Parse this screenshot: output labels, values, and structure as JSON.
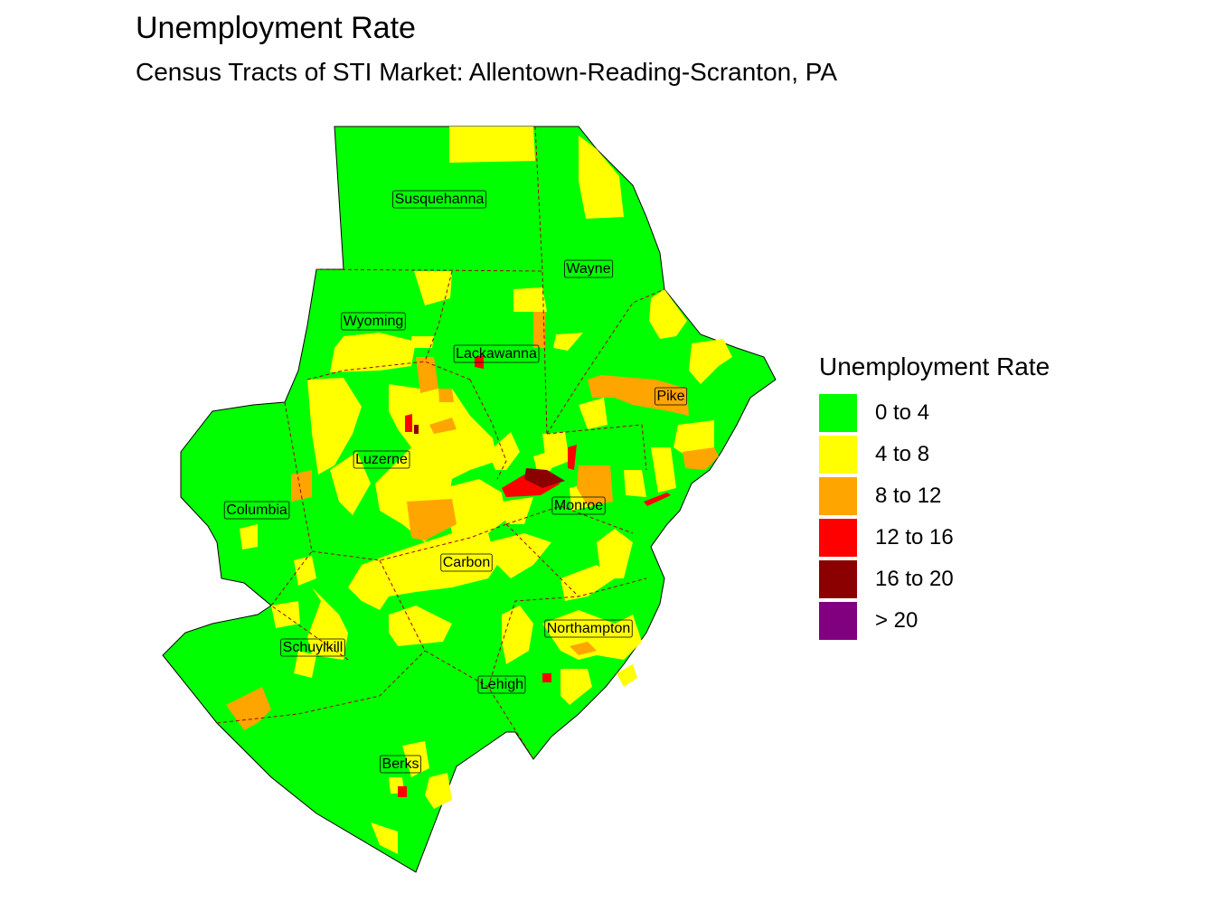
{
  "title": "Unemployment Rate",
  "subtitle": "Census Tracts of STI Market: Allentown-Reading-Scranton, PA",
  "legend": {
    "title": "Unemployment Rate",
    "items": [
      {
        "label": "0 to 4",
        "color": "#00ff00"
      },
      {
        "label": "4 to 8",
        "color": "#ffff00"
      },
      {
        "label": "8 to 12",
        "color": "#ffa500"
      },
      {
        "label": "12 to 16",
        "color": "#ff0000"
      },
      {
        "label": "16 to 20",
        "color": "#8b0000"
      },
      {
        "label": "> 20",
        "color": "#800080"
      }
    ]
  },
  "counties": [
    {
      "name": "Susquehanna"
    },
    {
      "name": "Wayne"
    },
    {
      "name": "Wyoming"
    },
    {
      "name": "Lackawanna"
    },
    {
      "name": "Pike"
    },
    {
      "name": "Luzerne"
    },
    {
      "name": "Columbia"
    },
    {
      "name": "Monroe"
    },
    {
      "name": "Carbon"
    },
    {
      "name": "Northampton"
    },
    {
      "name": "Schuylkill"
    },
    {
      "name": "Lehigh"
    },
    {
      "name": "Berks"
    }
  ]
}
